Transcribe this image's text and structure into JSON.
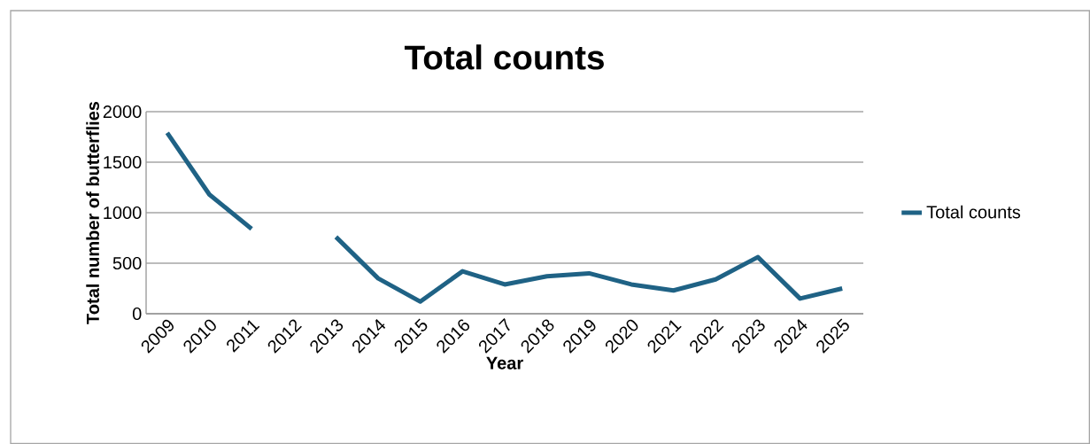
{
  "chart_data": {
    "type": "line",
    "title": "Total counts",
    "xlabel": "Year",
    "ylabel": "Total number of butterflies",
    "categories": [
      "2009",
      "2010",
      "2011",
      "2012",
      "2013",
      "2014",
      "2015",
      "2016",
      "2017",
      "2018",
      "2019",
      "2020",
      "2021",
      "2022",
      "2023",
      "2024",
      "2025"
    ],
    "series": [
      {
        "name": "Total counts",
        "color": "#1f6285",
        "values": [
          1790,
          1180,
          840,
          null,
          760,
          350,
          120,
          420,
          290,
          370,
          400,
          290,
          230,
          340,
          560,
          150,
          250
        ]
      }
    ],
    "ylim": [
      0,
      2000
    ],
    "yticks": [
      0,
      500,
      1000,
      1500,
      2000
    ],
    "grid": "y",
    "legend": "right"
  }
}
